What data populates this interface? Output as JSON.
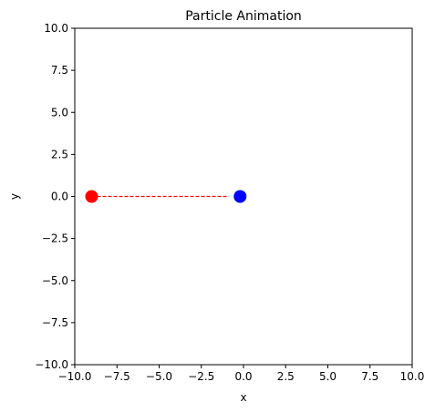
{
  "chart_data": {
    "type": "scatter",
    "title": "Particle Animation",
    "xlabel": "x",
    "ylabel": "y",
    "xlim": [
      -10,
      10
    ],
    "ylim": [
      -10,
      10
    ],
    "xticks": [
      -10,
      -7.5,
      -5,
      -2.5,
      0,
      2.5,
      5,
      7.5,
      10
    ],
    "yticks": [
      -10,
      -7.5,
      -5,
      -2.5,
      0,
      2.5,
      5,
      7.5,
      10
    ],
    "xtick_labels": [
      "−10.0",
      "−7.5",
      "−5.0",
      "−2.5",
      "0.0",
      "2.5",
      "5.0",
      "7.5",
      "10.0"
    ],
    "ytick_labels": [
      "−10.0",
      "−7.5",
      "−5.0",
      "−2.5",
      "0.0",
      "2.5",
      "5.0",
      "7.5",
      "10.0"
    ],
    "grid": false,
    "points": [
      {
        "x": -9.0,
        "y": 0.0,
        "color": "#ff0000"
      },
      {
        "x": -0.2,
        "y": 0.0,
        "color": "#0000ff"
      }
    ],
    "trail": {
      "x": [
        -9.0,
        -0.9
      ],
      "y": [
        0.0,
        0.0
      ],
      "color": "#ff0000",
      "style": "dashed"
    }
  }
}
